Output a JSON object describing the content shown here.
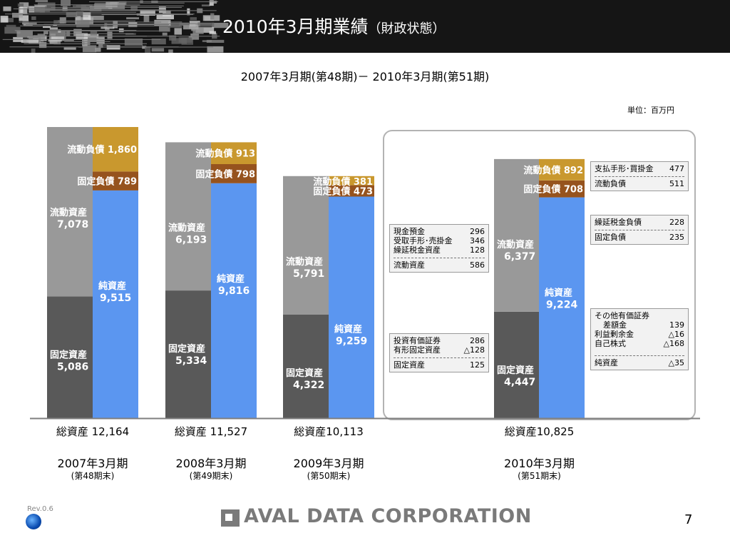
{
  "title": {
    "main": "2010年3月期業績",
    "sub": "（財政状態）"
  },
  "subtitle": "2007年3月期(第48期)－ 2010年3月期(第51期)",
  "unit": "単位：百万円",
  "colors": {
    "header_bg": "#151515",
    "fixed_assets": "#595959",
    "current_assets": "#999999",
    "net_assets": "#5b96f0",
    "fixed_liabilities": "#96531e",
    "current_liabilities": "#c9982e"
  },
  "chart_data": {
    "type": "stacked-bar",
    "unit": "百万円",
    "ylim": [
      0,
      12164
    ],
    "periods": [
      {
        "label": "2007年3月期",
        "sub": "(第48期末)",
        "total_label": "総資産 12,164",
        "assets": [
          {
            "name": "固定資産",
            "value": 5086
          },
          {
            "name": "流動資産",
            "value": 7078
          }
        ],
        "liabilities": [
          {
            "name": "純資産",
            "value": 9515
          },
          {
            "name": "固定負債",
            "value": 789
          },
          {
            "name": "流動負債",
            "value": 1860
          }
        ]
      },
      {
        "label": "2008年3月期",
        "sub": "(第49期末)",
        "total_label": "総資産 11,527",
        "assets": [
          {
            "name": "固定資産",
            "value": 5334
          },
          {
            "name": "流動資産",
            "value": 6193
          }
        ],
        "liabilities": [
          {
            "name": "純資産",
            "value": 9816
          },
          {
            "name": "固定負債",
            "value": 798
          },
          {
            "name": "流動負債",
            "value": 913
          }
        ]
      },
      {
        "label": "2009年3月期",
        "sub": "(第50期末)",
        "total_label": "総資産10,113",
        "assets": [
          {
            "name": "固定資産",
            "value": 4322
          },
          {
            "name": "流動資産",
            "value": 5791
          }
        ],
        "liabilities": [
          {
            "name": "純資産",
            "value": 9259
          },
          {
            "name": "固定負債",
            "value": 473
          },
          {
            "name": "流動負債",
            "value": 381
          }
        ]
      },
      {
        "label": "2010年3月期",
        "sub": "(第51期末)",
        "total_label": "総資産10,825",
        "assets": [
          {
            "name": "固定資産",
            "value": 4447
          },
          {
            "name": "流動資産",
            "value": 6377
          }
        ],
        "liabilities": [
          {
            "name": "純資産",
            "value": 9224
          },
          {
            "name": "固定負債",
            "value": 708
          },
          {
            "name": "流動負債",
            "value": 892
          }
        ]
      }
    ]
  },
  "notes": {
    "current_assets": {
      "rows": [
        {
          "label": "現金預金",
          "value": "296"
        },
        {
          "label": "受取手形･売掛金",
          "value": "346"
        },
        {
          "label": "繰延税金資産",
          "value": "128"
        }
      ],
      "total": {
        "label": "流動資産",
        "value": "586"
      }
    },
    "fixed_assets": {
      "rows": [
        {
          "label": "投資有価証券",
          "value": "286"
        },
        {
          "label": "有形固定資産",
          "value": "△128"
        }
      ],
      "total": {
        "label": "固定資産",
        "value": "125"
      }
    },
    "current_liabilities": {
      "rows": [
        {
          "label": "支払手形･買掛金",
          "value": "477"
        }
      ],
      "total": {
        "label": "流動負債",
        "value": "511"
      }
    },
    "fixed_liabilities": {
      "rows": [
        {
          "label": "繰延税金負債",
          "value": "228"
        }
      ],
      "total": {
        "label": "固定負債",
        "value": "235"
      }
    },
    "net_assets": {
      "rows": [
        {
          "label": "その他有価証券",
          "value": ""
        },
        {
          "label": "差額金",
          "value": "139"
        },
        {
          "label": "利益剰余金",
          "value": "△16"
        },
        {
          "label": "自己株式",
          "value": "△168"
        }
      ],
      "total": {
        "label": "純資産",
        "value": "△35"
      }
    }
  },
  "footer": {
    "rev": "Rev.0.6",
    "company": "AVAL DATA CORPORATION",
    "page": "7"
  }
}
